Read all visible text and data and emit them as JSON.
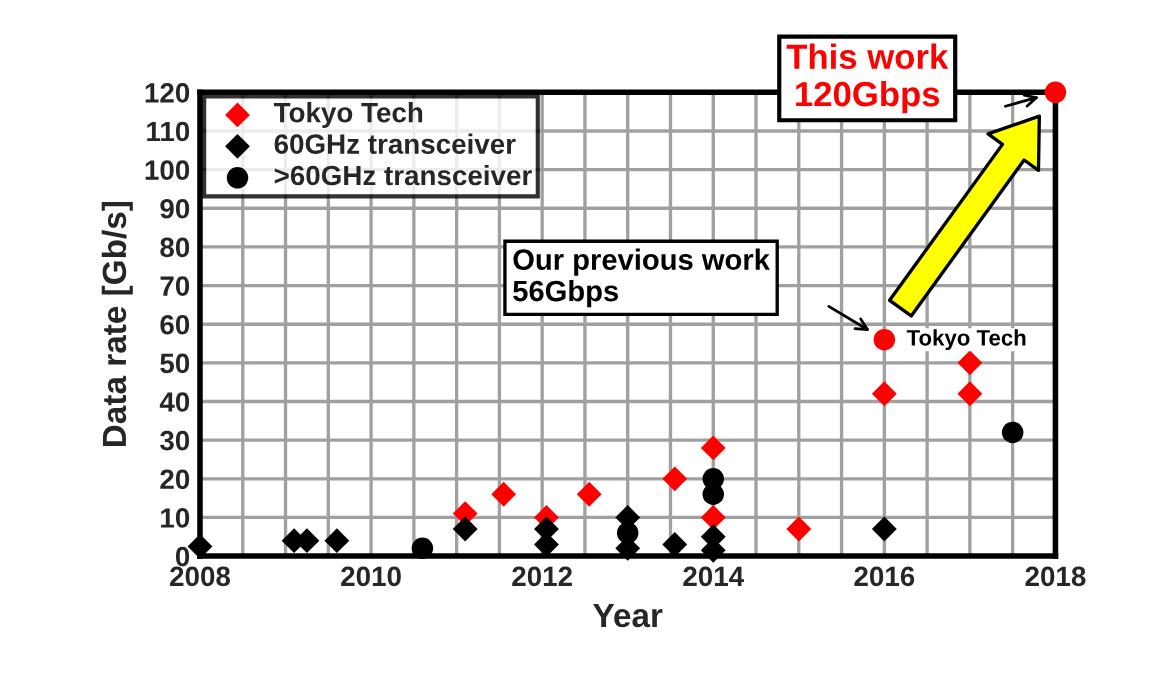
{
  "chart_data": {
    "type": "scatter",
    "xlabel": "Year",
    "ylabel": "Data rate [Gb/s]",
    "xlim": [
      2008,
      2018
    ],
    "ylim": [
      0,
      120
    ],
    "xticks": [
      2008,
      {
        "value": 2008.5,
        "label": null
      },
      {
        "value": 2009,
        "label": null
      },
      {
        "value": 2009.5,
        "label": null
      },
      2010,
      {
        "value": 2010.5,
        "label": null
      },
      {
        "value": 2011,
        "label": null
      },
      {
        "value": 2011.5,
        "label": null
      },
      2012,
      {
        "value": 2012.5,
        "label": null
      },
      {
        "value": 2013,
        "label": null
      },
      {
        "value": 2013.5,
        "label": null
      },
      2014,
      {
        "value": 2014.5,
        "label": null
      },
      {
        "value": 2015,
        "label": null
      },
      {
        "value": 2015.5,
        "label": null
      },
      2016,
      {
        "value": 2016.5,
        "label": null
      },
      {
        "value": 2017,
        "label": null
      },
      {
        "value": 2017.5,
        "label": null
      },
      2018
    ],
    "yticks": [
      0,
      10,
      20,
      30,
      40,
      50,
      60,
      70,
      80,
      90,
      100,
      110,
      120
    ],
    "grid": true,
    "legend": "top left",
    "series": [
      {
        "name": "Tokyo Tech",
        "color": "#ff0000",
        "marker": "diamond",
        "x": [
          2011.1,
          2011.55,
          2012.05,
          2012.55,
          2013.55,
          2014,
          2014,
          2015,
          2016,
          2017,
          2017
        ],
        "values": [
          11,
          16,
          10,
          16,
          20,
          28,
          10,
          7,
          42,
          50,
          42
        ]
      },
      {
        "color": "#ff0000",
        "marker": "circle",
        "x": [
          2016,
          2018
        ],
        "values": [
          56,
          120
        ]
      },
      {
        "name": "60GHz transceiver",
        "color": "#000000",
        "marker": "diamond",
        "x": [
          2008,
          2009.1,
          2009.25,
          2009.6,
          2011.1,
          2012.05,
          2012.05,
          2013,
          2013,
          2013.55,
          2014,
          2014,
          2016
        ],
        "values": [
          2.5,
          4,
          4,
          4,
          7,
          7,
          3,
          10,
          2,
          3,
          5,
          1.5,
          7
        ]
      },
      {
        "name": ">60GHz transceiver",
        "color": "#000000",
        "marker": "circle",
        "x": [
          2010.6,
          2013,
          2014,
          2014,
          2017.5
        ],
        "values": [
          2,
          6,
          20,
          16,
          32
        ]
      }
    ],
    "annotations": [
      "This work\n120Gbps",
      "Our previous work\n56Gbps",
      {
        "text": "Tokyo Tech",
        "x": 2016,
        "y": 56
      }
    ]
  }
}
